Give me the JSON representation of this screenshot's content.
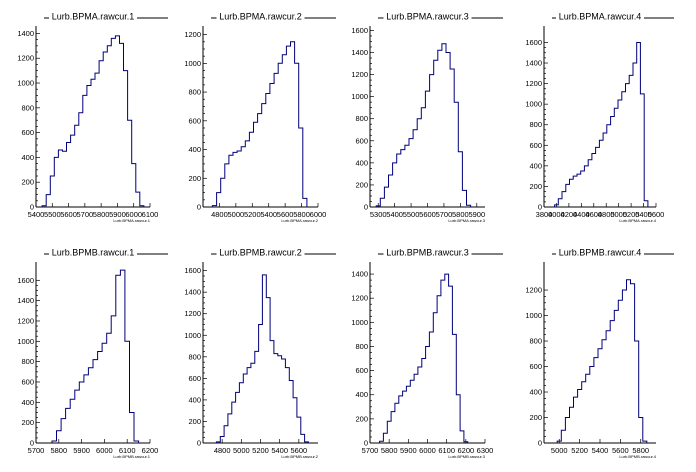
{
  "chart_data": [
    {
      "type": "histogram",
      "title": "Lurb.BPMA.rawcur.1",
      "xlabel": "Lurb.BPMA.rawcur.1",
      "xlim": [
        5400,
        6100
      ],
      "ylim": [
        0,
        1460
      ],
      "x_ticks": [
        5400,
        5500,
        5600,
        5700,
        5800,
        5900,
        6000,
        6100
      ],
      "x_tick_labels": [
        "5400",
        "5500",
        "5600",
        "5700",
        "5800",
        "5900",
        "6000",
        "6100"
      ],
      "y_ticks": [
        0,
        200,
        400,
        600,
        800,
        1000,
        1200,
        1400
      ],
      "x": [
        5450,
        5475,
        5500,
        5525,
        5550,
        5575,
        5600,
        5625,
        5650,
        5675,
        5700,
        5725,
        5750,
        5775,
        5800,
        5825,
        5850,
        5875,
        5900,
        5925,
        5950,
        5975,
        6000,
        6025,
        6050
      ],
      "values": [
        10,
        100,
        250,
        400,
        460,
        450,
        520,
        580,
        660,
        760,
        900,
        980,
        1030,
        1080,
        1180,
        1250,
        1300,
        1360,
        1380,
        1320,
        1100,
        700,
        350,
        120,
        10
      ]
    },
    {
      "type": "histogram",
      "title": "Lurb.BPMA.rawcur.2",
      "xlabel": "Lurb.BPMA.rawcur.2",
      "xlim": [
        4600,
        6000
      ],
      "ylim": [
        0,
        1260
      ],
      "x_ticks": [
        4800,
        5000,
        5200,
        5400,
        5600,
        5800,
        6000
      ],
      "x_tick_labels": [
        "4800",
        "5000",
        "5200",
        "5400",
        "5600",
        "5800",
        "6000"
      ],
      "y_ticks": [
        0,
        200,
        400,
        600,
        800,
        1000,
        1200
      ],
      "x": [
        4740,
        4790,
        4840,
        4890,
        4940,
        4990,
        5040,
        5090,
        5140,
        5190,
        5240,
        5290,
        5340,
        5390,
        5440,
        5490,
        5540,
        5590,
        5640,
        5690,
        5740,
        5790,
        5840
      ],
      "values": [
        10,
        100,
        200,
        300,
        360,
        380,
        390,
        420,
        460,
        520,
        590,
        650,
        720,
        790,
        860,
        930,
        1000,
        1060,
        1120,
        1150,
        1000,
        550,
        60
      ]
    },
    {
      "type": "histogram",
      "title": "Lurb.BPMA.rawcur.3",
      "xlabel": "Lurb.BPMA.rawcur.3",
      "xlim": [
        5250,
        5950
      ],
      "ylim": [
        0,
        1640
      ],
      "x_ticks": [
        5300,
        5400,
        5500,
        5600,
        5700,
        5800,
        5900
      ],
      "x_tick_labels": [
        "5300",
        "5400",
        "5500",
        "5600",
        "5700",
        "5800",
        "5900"
      ],
      "y_ticks": [
        0,
        200,
        400,
        600,
        800,
        1000,
        1200,
        1400,
        1600
      ],
      "x": [
        5300,
        5325,
        5350,
        5375,
        5400,
        5425,
        5450,
        5475,
        5500,
        5525,
        5550,
        5575,
        5600,
        5625,
        5650,
        5675,
        5700,
        5725,
        5750,
        5775,
        5800,
        5825,
        5850
      ],
      "values": [
        10,
        80,
        180,
        290,
        400,
        480,
        520,
        560,
        620,
        700,
        800,
        900,
        1050,
        1200,
        1330,
        1420,
        1480,
        1400,
        1250,
        950,
        500,
        150,
        15
      ]
    },
    {
      "type": "histogram",
      "title": "Lurb.BPMA.rawcur.4",
      "xlabel": "Lurb.BPMA.rawcur.4",
      "xlim": [
        3800,
        5600
      ],
      "ylim": [
        0,
        1760
      ],
      "x_ticks": [
        3800,
        4000,
        4200,
        4400,
        4600,
        4800,
        5000,
        5200,
        5400,
        5600
      ],
      "x_tick_labels": [
        "3800",
        "4000",
        "4200",
        "4400",
        "4600",
        "4800",
        "5000",
        "5200",
        "5400",
        "5600"
      ],
      "y_ticks": [
        0,
        200,
        400,
        600,
        800,
        1000,
        1200,
        1400,
        1600
      ],
      "x": [
        4000,
        4060,
        4120,
        4180,
        4240,
        4300,
        4360,
        4420,
        4480,
        4540,
        4600,
        4660,
        4720,
        4780,
        4840,
        4900,
        4960,
        5020,
        5080,
        5140,
        5200,
        5260,
        5320,
        5380,
        5440
      ],
      "values": [
        20,
        80,
        150,
        220,
        270,
        300,
        320,
        350,
        400,
        460,
        520,
        580,
        650,
        720,
        800,
        880,
        960,
        1040,
        1120,
        1200,
        1280,
        1400,
        1600,
        1100,
        60
      ]
    },
    {
      "type": "histogram",
      "title": "Lurb.BPMB.rawcur.1",
      "xlabel": "Lurb.BPMB.rawcur.1",
      "xlim": [
        5700,
        6200
      ],
      "ylim": [
        0,
        1780
      ],
      "x_ticks": [
        5700,
        5800,
        5900,
        6000,
        6100,
        6200
      ],
      "x_tick_labels": [
        "5700",
        "5800",
        "5900",
        "6000",
        "6100",
        "6200"
      ],
      "y_ticks": [
        0,
        200,
        400,
        600,
        800,
        1000,
        1200,
        1400,
        1600
      ],
      "x": [
        5780,
        5800,
        5820,
        5840,
        5860,
        5880,
        5900,
        5920,
        5940,
        5960,
        5980,
        6000,
        6020,
        6040,
        6060,
        6080,
        6100,
        6120,
        6140
      ],
      "values": [
        20,
        120,
        240,
        340,
        430,
        520,
        600,
        670,
        740,
        820,
        900,
        980,
        1080,
        1250,
        1650,
        1700,
        1000,
        300,
        20
      ]
    },
    {
      "type": "histogram",
      "title": "Lurb.BPMB.rawcur.2",
      "xlabel": "Lurb.BPMB.rawcur.2",
      "xlim": [
        4600,
        5800
      ],
      "ylim": [
        0,
        1680
      ],
      "x_ticks": [
        4800,
        5000,
        5200,
        5400,
        5600
      ],
      "x_tick_labels": [
        "4800",
        "5000",
        "5200",
        "5400",
        "5600"
      ],
      "y_ticks": [
        0,
        200,
        400,
        600,
        800,
        1000,
        1200,
        1400,
        1600
      ],
      "x": [
        4760,
        4800,
        4840,
        4880,
        4920,
        4960,
        5000,
        5040,
        5080,
        5120,
        5160,
        5200,
        5240,
        5280,
        5320,
        5360,
        5400,
        5440,
        5480,
        5520,
        5560,
        5600,
        5640,
        5680
      ],
      "values": [
        10,
        60,
        160,
        270,
        380,
        470,
        560,
        640,
        700,
        740,
        850,
        1100,
        1560,
        1350,
        950,
        830,
        810,
        780,
        700,
        580,
        420,
        240,
        80,
        10
      ]
    },
    {
      "type": "histogram",
      "title": "Lurb.BPMB.rawcur.3",
      "xlabel": "Lurb.BPMB.rawcur.3",
      "xlim": [
        5700,
        6300
      ],
      "ylim": [
        0,
        1500
      ],
      "x_ticks": [
        5700,
        5800,
        5900,
        6000,
        6100,
        6200,
        6300
      ],
      "x_tick_labels": [
        "5700",
        "5800",
        "5900",
        "6000",
        "6100",
        "6200",
        "6300"
      ],
      "y_ticks": [
        0,
        200,
        400,
        600,
        800,
        1000,
        1200,
        1400
      ],
      "x": [
        5760,
        5780,
        5800,
        5820,
        5840,
        5860,
        5880,
        5900,
        5920,
        5940,
        5960,
        5980,
        6000,
        6020,
        6040,
        6060,
        6080,
        6100,
        6120,
        6140,
        6160,
        6180,
        6200
      ],
      "values": [
        15,
        80,
        180,
        260,
        330,
        390,
        430,
        470,
        520,
        570,
        630,
        700,
        800,
        920,
        1080,
        1220,
        1350,
        1400,
        1300,
        900,
        400,
        100,
        10
      ]
    },
    {
      "type": "histogram",
      "title": "Lurb.BPMB.rawcur.4",
      "xlabel": "Lurb.BPMB.rawcur.4",
      "xlim": [
        4850,
        5950
      ],
      "ylim": [
        0,
        1420
      ],
      "x_ticks": [
        5000,
        5200,
        5400,
        5600,
        5800
      ],
      "x_tick_labels": [
        "5000",
        "5200",
        "5400",
        "5600",
        "5800"
      ],
      "y_ticks": [
        0,
        200,
        400,
        600,
        800,
        1000,
        1200
      ],
      "x": [
        5000,
        5040,
        5080,
        5120,
        5160,
        5200,
        5240,
        5280,
        5320,
        5360,
        5400,
        5440,
        5480,
        5520,
        5560,
        5600,
        5640,
        5680,
        5720,
        5760,
        5800,
        5840
      ],
      "values": [
        15,
        100,
        200,
        280,
        360,
        420,
        480,
        540,
        600,
        670,
        740,
        810,
        880,
        960,
        1040,
        1120,
        1200,
        1280,
        1250,
        800,
        200,
        15
      ]
    }
  ],
  "colors": {
    "line": "#00007a",
    "axis": "#000000",
    "background": "#ffffff"
  }
}
